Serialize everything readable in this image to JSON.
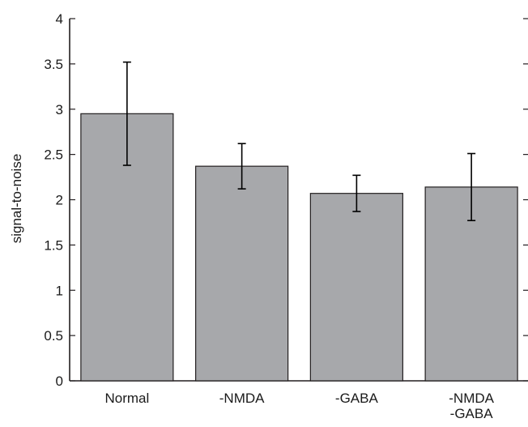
{
  "chart_data": {
    "type": "bar",
    "title": "",
    "xlabel": "",
    "ylabel": "signal-to-noise",
    "categories": [
      [
        "Normal"
      ],
      [
        "-NMDA"
      ],
      [
        "-GABA"
      ],
      [
        "-NMDA",
        "-GABA"
      ]
    ],
    "values": [
      2.95,
      2.37,
      2.07,
      2.14
    ],
    "error_low": [
      2.38,
      2.12,
      1.87,
      1.77
    ],
    "error_high": [
      3.52,
      2.62,
      2.27,
      2.51
    ],
    "ylim": [
      0,
      4
    ],
    "yticks": [
      0,
      0.5,
      1,
      1.5,
      2,
      2.5,
      3,
      3.5,
      4
    ],
    "ytick_labels": [
      "0",
      "0.5",
      "1",
      "1.5",
      "2",
      "2.5",
      "3",
      "3.5",
      "4"
    ],
    "grid": false,
    "legend": "none",
    "colors": {
      "bar_fill": "#a7a8ab",
      "bar_stroke": "#231f20",
      "axis": "#231f20",
      "error_bar": "#000000"
    }
  }
}
